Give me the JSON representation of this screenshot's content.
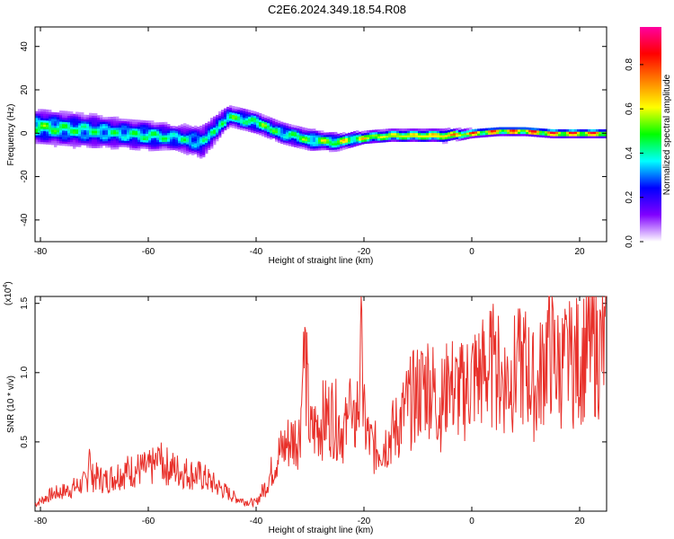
{
  "figure_title": "C2E6.2024.349.18.54.R08",
  "colorbar": {
    "label": "Normalized spectral amplitude",
    "ticks": [
      "0.0",
      "0.2",
      "0.4",
      "0.6",
      "0.8"
    ],
    "tick_values": [
      0.0,
      0.2,
      0.4,
      0.6,
      0.8
    ],
    "range": [
      0.0,
      0.97
    ],
    "colormap_stops": [
      "#ffffff",
      "#8000ff",
      "#0000ff",
      "#00ffff",
      "#00ff00",
      "#ffff00",
      "#ff8000",
      "#ff0000",
      "#ff00a0"
    ]
  },
  "chart_data": [
    {
      "type": "heatmap",
      "title": "",
      "xlabel": "Height of straight line (km)",
      "ylabel": "Frequency (Hz)",
      "xlim": [
        -81,
        25
      ],
      "ylim": [
        -50,
        49
      ],
      "x_ticks": [
        "-80",
        "-60",
        "-40",
        "-20",
        "0",
        "20"
      ],
      "x_tick_values": [
        -80,
        -60,
        -40,
        -20,
        0,
        20
      ],
      "y_ticks": [
        "40",
        "20",
        "0",
        "-20",
        "-40"
      ],
      "y_tick_values": [
        40,
        20,
        0,
        -20,
        -40
      ],
      "ridge": {
        "x": [
          -80,
          -75,
          -70,
          -65,
          -60,
          -55,
          -50,
          -45,
          -40,
          -35,
          -30,
          -25,
          -20,
          -15,
          -10,
          -5,
          0,
          5,
          10,
          15,
          20,
          25
        ],
        "freq": [
          3,
          2,
          1,
          0,
          -1,
          -2,
          -4,
          8,
          5,
          0,
          -3,
          -4,
          -2,
          -1,
          -1,
          -1,
          0,
          1,
          1,
          0,
          0,
          0
        ],
        "peak_amplitude": [
          0.6,
          0.55,
          0.5,
          0.5,
          0.55,
          0.5,
          0.45,
          0.55,
          0.6,
          0.55,
          0.6,
          0.7,
          0.75,
          0.75,
          0.8,
          0.85,
          0.9,
          0.9,
          0.95,
          0.95,
          0.95,
          0.95
        ],
        "spread_hz": [
          8,
          8,
          8,
          7,
          7,
          6,
          8,
          5,
          5,
          5,
          5,
          4,
          3,
          3,
          3,
          3,
          2,
          2,
          2,
          2,
          2,
          2
        ]
      }
    },
    {
      "type": "line",
      "title": "",
      "xlabel": "Height of straight line (km)",
      "ylabel": "SNR (10 * v/v)",
      "y_multiplier": "(x10",
      "y_multiplier_exp": "4",
      "y_multiplier_close": ")",
      "xlim": [
        -81,
        25
      ],
      "ylim": [
        0.0,
        1.55
      ],
      "x_ticks": [
        "-80",
        "-60",
        "-40",
        "-20",
        "0",
        "20"
      ],
      "x_tick_values": [
        -80,
        -60,
        -40,
        -20,
        0,
        20
      ],
      "y_ticks": [
        "0.5",
        "1.0",
        "1.5"
      ],
      "y_tick_values": [
        0.5,
        1.0,
        1.5
      ],
      "line_color": "#e8302a",
      "series": [
        {
          "x": [
            -81,
            -78,
            -75,
            -72,
            -70,
            -68,
            -65,
            -62,
            -60,
            -58,
            -55,
            -52,
            -50,
            -48,
            -46,
            -44,
            -42,
            -40,
            -38,
            -36,
            -34,
            -32,
            -31,
            -30,
            -28,
            -26,
            -24,
            -22,
            -21,
            -20,
            -19,
            -18,
            -16,
            -14,
            -12,
            -10,
            -8,
            -6,
            -4,
            -2,
            0,
            2,
            4,
            6,
            8,
            10,
            12,
            14,
            16,
            18,
            20,
            22,
            25
          ],
          "values": [
            0.05,
            0.12,
            0.15,
            0.2,
            0.25,
            0.22,
            0.28,
            0.3,
            0.3,
            0.35,
            0.3,
            0.27,
            0.25,
            0.2,
            0.15,
            0.1,
            0.07,
            0.06,
            0.2,
            0.4,
            0.5,
            0.55,
            1.15,
            0.55,
            0.65,
            0.7,
            0.6,
            0.55,
            0.8,
            0.65,
            0.5,
            0.45,
            0.5,
            0.6,
            0.75,
            0.85,
            0.95,
            0.75,
            0.9,
            0.85,
            0.95,
            1.0,
            1.05,
            0.95,
            1.0,
            1.05,
            0.85,
            1.2,
            1.05,
            1.05,
            1.1,
            1.2,
            1.15
          ],
          "peaks": [
            {
              "x": -20.5,
              "value": 1.57
            },
            {
              "x": -31.2,
              "value": 1.15
            },
            {
              "x": -22.6,
              "value": 0.97
            },
            {
              "x": 4.2,
              "value": 1.27
            },
            {
              "x": 8.6,
              "value": 1.33
            },
            {
              "x": 14.3,
              "value": 1.47
            },
            {
              "x": 18.2,
              "value": 1.3
            },
            {
              "x": 0.2,
              "value": 1.23
            },
            {
              "x": -4.3,
              "value": 1.05
            },
            {
              "x": -70.9,
              "value": 0.45
            },
            {
              "x": -58.0,
              "value": 0.46
            }
          ]
        }
      ]
    }
  ]
}
